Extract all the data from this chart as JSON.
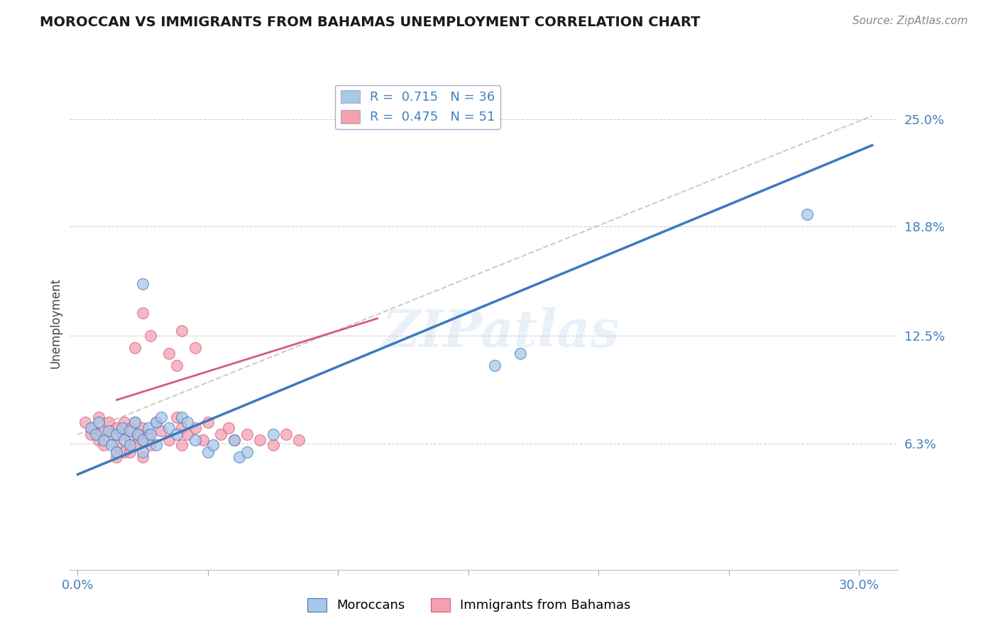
{
  "title": "MOROCCAN VS IMMIGRANTS FROM BAHAMAS UNEMPLOYMENT CORRELATION CHART",
  "source": "Source: ZipAtlas.com",
  "ylabel": "Unemployment",
  "x_ticks": [
    0.0,
    0.05,
    0.1,
    0.15,
    0.2,
    0.25,
    0.3
  ],
  "y_ticks": [
    0.063,
    0.125,
    0.188,
    0.25
  ],
  "y_tick_labels": [
    "6.3%",
    "12.5%",
    "18.8%",
    "25.0%"
  ],
  "ylim": [
    -0.01,
    0.275
  ],
  "xlim": [
    -0.003,
    0.315
  ],
  "legend_entries": [
    {
      "label": "R =  0.715   N = 36",
      "color": "#a8c8e8"
    },
    {
      "label": "R =  0.475   N = 51",
      "color": "#f4a0b0"
    }
  ],
  "watermark": "ZIPatlas",
  "blue_color": "#3a7abf",
  "pink_color": "#d45c7a",
  "blue_scatter_color": "#a8c8e8",
  "pink_scatter_color": "#f4a0b0",
  "blue_points": [
    [
      0.005,
      0.072
    ],
    [
      0.007,
      0.068
    ],
    [
      0.008,
      0.075
    ],
    [
      0.01,
      0.065
    ],
    [
      0.012,
      0.07
    ],
    [
      0.013,
      0.062
    ],
    [
      0.015,
      0.068
    ],
    [
      0.015,
      0.058
    ],
    [
      0.017,
      0.072
    ],
    [
      0.018,
      0.065
    ],
    [
      0.02,
      0.07
    ],
    [
      0.02,
      0.062
    ],
    [
      0.022,
      0.075
    ],
    [
      0.023,
      0.068
    ],
    [
      0.025,
      0.065
    ],
    [
      0.025,
      0.058
    ],
    [
      0.027,
      0.072
    ],
    [
      0.028,
      0.068
    ],
    [
      0.03,
      0.075
    ],
    [
      0.03,
      0.062
    ],
    [
      0.032,
      0.078
    ],
    [
      0.035,
      0.072
    ],
    [
      0.038,
      0.068
    ],
    [
      0.04,
      0.078
    ],
    [
      0.042,
      0.075
    ],
    [
      0.045,
      0.065
    ],
    [
      0.05,
      0.058
    ],
    [
      0.052,
      0.062
    ],
    [
      0.06,
      0.065
    ],
    [
      0.062,
      0.055
    ],
    [
      0.065,
      0.058
    ],
    [
      0.075,
      0.068
    ],
    [
      0.16,
      0.108
    ],
    [
      0.17,
      0.115
    ],
    [
      0.28,
      0.195
    ],
    [
      0.025,
      0.155
    ]
  ],
  "pink_points": [
    [
      0.003,
      0.075
    ],
    [
      0.005,
      0.068
    ],
    [
      0.006,
      0.072
    ],
    [
      0.008,
      0.065
    ],
    [
      0.008,
      0.078
    ],
    [
      0.01,
      0.07
    ],
    [
      0.01,
      0.062
    ],
    [
      0.012,
      0.075
    ],
    [
      0.013,
      0.068
    ],
    [
      0.015,
      0.072
    ],
    [
      0.015,
      0.062
    ],
    [
      0.015,
      0.055
    ],
    [
      0.017,
      0.068
    ],
    [
      0.018,
      0.075
    ],
    [
      0.018,
      0.058
    ],
    [
      0.02,
      0.072
    ],
    [
      0.02,
      0.065
    ],
    [
      0.02,
      0.058
    ],
    [
      0.022,
      0.075
    ],
    [
      0.022,
      0.062
    ],
    [
      0.023,
      0.068
    ],
    [
      0.025,
      0.072
    ],
    [
      0.025,
      0.065
    ],
    [
      0.025,
      0.055
    ],
    [
      0.027,
      0.068
    ],
    [
      0.028,
      0.062
    ],
    [
      0.03,
      0.075
    ],
    [
      0.032,
      0.07
    ],
    [
      0.035,
      0.065
    ],
    [
      0.038,
      0.078
    ],
    [
      0.04,
      0.072
    ],
    [
      0.04,
      0.062
    ],
    [
      0.042,
      0.068
    ],
    [
      0.045,
      0.072
    ],
    [
      0.048,
      0.065
    ],
    [
      0.05,
      0.075
    ],
    [
      0.055,
      0.068
    ],
    [
      0.058,
      0.072
    ],
    [
      0.06,
      0.065
    ],
    [
      0.065,
      0.068
    ],
    [
      0.07,
      0.065
    ],
    [
      0.075,
      0.062
    ],
    [
      0.08,
      0.068
    ],
    [
      0.085,
      0.065
    ],
    [
      0.022,
      0.118
    ],
    [
      0.028,
      0.125
    ],
    [
      0.035,
      0.115
    ],
    [
      0.038,
      0.108
    ],
    [
      0.04,
      0.128
    ],
    [
      0.045,
      0.118
    ],
    [
      0.025,
      0.138
    ]
  ],
  "blue_line": {
    "x0": 0.0,
    "y0": 0.045,
    "x1": 0.305,
    "y1": 0.235
  },
  "pink_line": {
    "x0": 0.015,
    "y0": 0.088,
    "x1": 0.115,
    "y1": 0.135
  },
  "gray_dash_line": {
    "x0": 0.0,
    "y0": 0.068,
    "x1": 0.305,
    "y1": 0.252
  },
  "background_color": "#ffffff",
  "grid_color": "#d0d0d0",
  "title_color": "#1a1a1a",
  "tick_color": "#4080c0",
  "source_color": "#888888"
}
